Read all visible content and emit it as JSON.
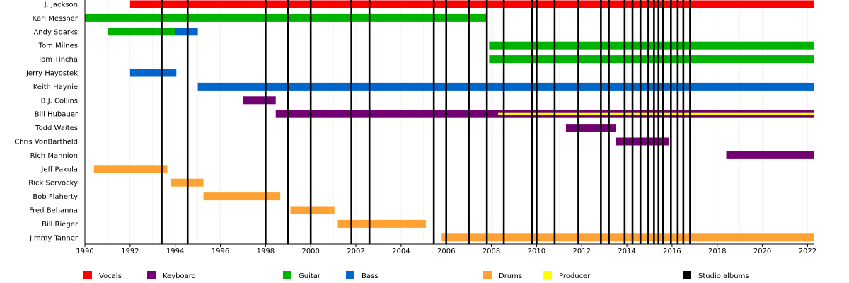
{
  "chart_data": {
    "type": "timeline",
    "xlim": [
      1990,
      2022.3
    ],
    "x_ticks": [
      "1990",
      "1992",
      "1994",
      "1996",
      "1998",
      "2000",
      "2002",
      "2004",
      "2006",
      "2008",
      "2010",
      "2012",
      "2014",
      "2016",
      "2018",
      "2020",
      "2022"
    ],
    "members": [
      {
        "name": "J. Jackson",
        "spans": [
          {
            "role": "Vocals",
            "start": 1992,
            "end": 2022.3
          }
        ]
      },
      {
        "name": "Karl Messner",
        "spans": [
          {
            "role": "Guitar",
            "start": 1990,
            "end": 2007.8
          }
        ]
      },
      {
        "name": "Andy Sparks",
        "spans": [
          {
            "role": "Guitar",
            "start": 1991,
            "end": 1994
          },
          {
            "role": "Bass",
            "start": 1994,
            "end": 1995
          }
        ]
      },
      {
        "name": "Tom Milnes",
        "spans": [
          {
            "role": "Guitar",
            "start": 2007.9,
            "end": 2022.3
          }
        ]
      },
      {
        "name": "Tom Tincha",
        "spans": [
          {
            "role": "Guitar",
            "start": 2007.9,
            "end": 2022.3
          }
        ]
      },
      {
        "name": "Jerry Hayostek",
        "spans": [
          {
            "role": "Bass",
            "start": 1992,
            "end": 1994.05
          }
        ]
      },
      {
        "name": "Keith Haynie",
        "spans": [
          {
            "role": "Bass",
            "start": 1995,
            "end": 2022.3
          }
        ]
      },
      {
        "name": "B.J. Collins",
        "spans": [
          {
            "role": "Keyboard",
            "start": 1997,
            "end": 1998.45
          }
        ]
      },
      {
        "name": "Bill Hubauer",
        "spans": [
          {
            "role": "Keyboard",
            "start": 1998.45,
            "end": 2022.3
          }
        ],
        "overlays": [
          {
            "role": "Producer",
            "start": 2008.3,
            "end": 2022.3
          }
        ]
      },
      {
        "name": "Todd Waites",
        "spans": [
          {
            "role": "Keyboard",
            "start": 2011.3,
            "end": 2013.5
          }
        ]
      },
      {
        "name": "Chris VonBartheld",
        "spans": [
          {
            "role": "Keyboard",
            "start": 2013.5,
            "end": 2015.85
          }
        ]
      },
      {
        "name": "Rich Mannion",
        "spans": [
          {
            "role": "Keyboard",
            "start": 2018.4,
            "end": 2022.3
          }
        ]
      },
      {
        "name": "Jeff Pakula",
        "spans": [
          {
            "role": "Drums",
            "start": 1990.4,
            "end": 1993.65
          }
        ]
      },
      {
        "name": "Rick Servocky",
        "spans": [
          {
            "role": "Drums",
            "start": 1993.8,
            "end": 1995.25
          }
        ]
      },
      {
        "name": "Bob Flaherty",
        "spans": [
          {
            "role": "Drums",
            "start": 1995.25,
            "end": 1998.65
          }
        ]
      },
      {
        "name": "Fred Behanna",
        "spans": [
          {
            "role": "Drums",
            "start": 1999.1,
            "end": 2001.05
          }
        ]
      },
      {
        "name": "Bill Rieger",
        "spans": [
          {
            "role": "Drums",
            "start": 2001.2,
            "end": 2005.1
          }
        ]
      },
      {
        "name": "Jimmy Tanner",
        "spans": [
          {
            "role": "Drums",
            "start": 2005.8,
            "end": 2022.3
          }
        ]
      }
    ],
    "studio_albums": [
      1993.4,
      1994.55,
      1998,
      1999,
      2000,
      2001.8,
      2002.6,
      2005.45,
      2006,
      2007,
      2007.8,
      2008.55,
      2009.8,
      2010,
      2010.8,
      2011.85,
      2012.85,
      2013.2,
      2013.9,
      2014.25,
      2014.6,
      2014.95,
      2015.2,
      2015.4,
      2015.6,
      2015.95,
      2016.25,
      2016.5,
      2016.8
    ],
    "legend": [
      {
        "label": "Vocals",
        "color": "#ff0000"
      },
      {
        "label": "Keyboard",
        "color": "#730073"
      },
      {
        "label": "Guitar",
        "color": "#00b300"
      },
      {
        "label": "Bass",
        "color": "#0066cc"
      },
      {
        "label": "Drums",
        "color": "#ffa233"
      },
      {
        "label": "Producer",
        "color": "#ffff00"
      },
      {
        "label": "Studio albums",
        "color": "#000000"
      }
    ]
  }
}
